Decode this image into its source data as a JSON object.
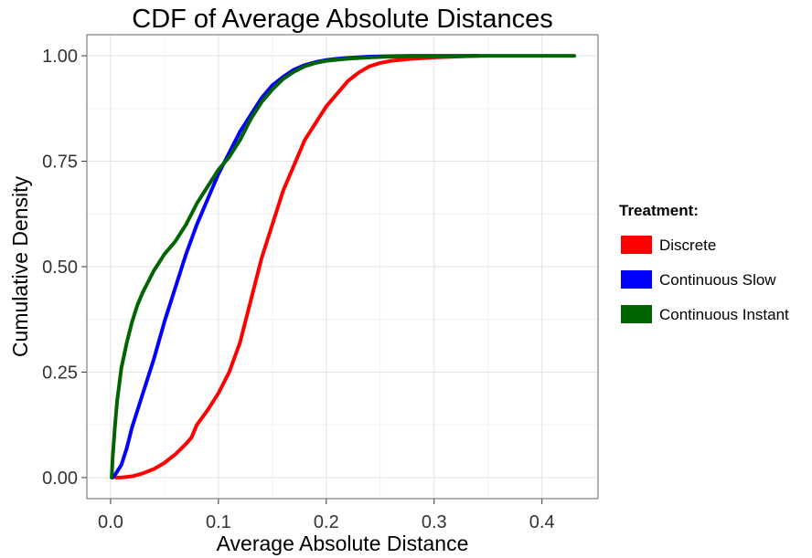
{
  "chart_data": {
    "type": "line",
    "title": "CDF of Average Absolute Distances",
    "xlabel": "Average Absolute Distance",
    "ylabel": "Cumulative Density",
    "xlim": [
      -0.022,
      0.452
    ],
    "ylim": [
      -0.05,
      1.05
    ],
    "xticks": [
      0.0,
      0.1,
      0.2,
      0.3,
      0.4
    ],
    "xtick_labels": [
      "0.0",
      "0.1",
      "0.2",
      "0.3",
      "0.4"
    ],
    "yticks": [
      0.0,
      0.25,
      0.5,
      0.75,
      1.0
    ],
    "ytick_labels": [
      "0.00",
      "0.25",
      "0.50",
      "0.75",
      "1.00"
    ],
    "grid": true,
    "legend": {
      "title": "Treatment:",
      "position": "right"
    },
    "series": [
      {
        "name": "Discrete",
        "color": "#ff0000",
        "x": [
          0.005,
          0.01,
          0.02,
          0.03,
          0.04,
          0.05,
          0.06,
          0.07,
          0.075,
          0.08,
          0.09,
          0.1,
          0.11,
          0.12,
          0.13,
          0.14,
          0.15,
          0.16,
          0.17,
          0.18,
          0.19,
          0.2,
          0.21,
          0.22,
          0.23,
          0.24,
          0.25,
          0.26,
          0.28,
          0.3,
          0.32,
          0.34
        ],
        "y": [
          0.0,
          0.0,
          0.003,
          0.01,
          0.02,
          0.035,
          0.055,
          0.08,
          0.095,
          0.125,
          0.16,
          0.2,
          0.25,
          0.32,
          0.42,
          0.52,
          0.6,
          0.68,
          0.74,
          0.8,
          0.84,
          0.88,
          0.91,
          0.94,
          0.96,
          0.975,
          0.983,
          0.988,
          0.993,
          0.996,
          0.998,
          1.0
        ]
      },
      {
        "name": "Continuous Slow",
        "color": "#0000ff",
        "x": [
          0.002,
          0.005,
          0.01,
          0.015,
          0.02,
          0.03,
          0.04,
          0.05,
          0.06,
          0.07,
          0.08,
          0.09,
          0.1,
          0.11,
          0.12,
          0.13,
          0.14,
          0.15,
          0.16,
          0.17,
          0.18,
          0.19,
          0.2,
          0.21,
          0.22,
          0.24,
          0.26,
          0.28,
          0.3,
          0.32,
          0.342
        ],
        "y": [
          0.0,
          0.01,
          0.03,
          0.07,
          0.12,
          0.2,
          0.28,
          0.37,
          0.45,
          0.53,
          0.6,
          0.66,
          0.72,
          0.77,
          0.82,
          0.86,
          0.9,
          0.93,
          0.95,
          0.967,
          0.978,
          0.985,
          0.99,
          0.993,
          0.995,
          0.998,
          0.999,
          1.0,
          1.0,
          1.0,
          1.0
        ]
      },
      {
        "name": "Continuous Instant",
        "color": "#006400",
        "x": [
          0.001,
          0.002,
          0.004,
          0.006,
          0.008,
          0.01,
          0.015,
          0.02,
          0.025,
          0.03,
          0.04,
          0.05,
          0.06,
          0.07,
          0.08,
          0.09,
          0.1,
          0.11,
          0.12,
          0.13,
          0.14,
          0.15,
          0.16,
          0.17,
          0.18,
          0.19,
          0.2,
          0.22,
          0.24,
          0.26,
          0.3,
          0.35,
          0.4,
          0.43
        ],
        "y": [
          0.0,
          0.05,
          0.12,
          0.18,
          0.22,
          0.26,
          0.32,
          0.37,
          0.41,
          0.44,
          0.49,
          0.53,
          0.56,
          0.6,
          0.65,
          0.69,
          0.73,
          0.76,
          0.8,
          0.85,
          0.89,
          0.92,
          0.945,
          0.962,
          0.975,
          0.983,
          0.988,
          0.993,
          0.996,
          0.998,
          0.999,
          1.0,
          1.0,
          1.0
        ]
      }
    ]
  }
}
